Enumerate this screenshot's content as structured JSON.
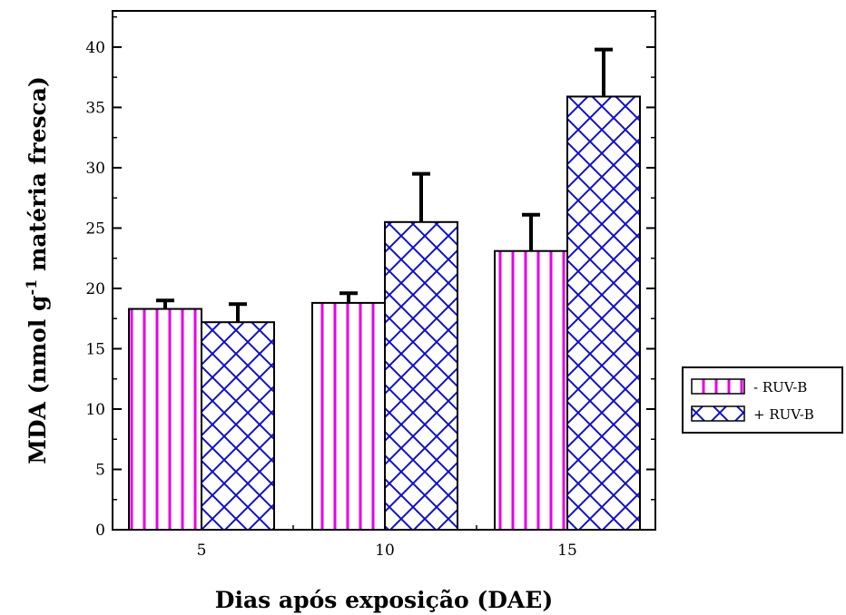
{
  "chart_data": {
    "type": "bar",
    "title": "",
    "xlabel": "Dias após exposição (DAE)",
    "ylabel_main": "MDA (nmol g",
    "ylabel_sup": "-1",
    "ylabel_rest": " matéria fresca)",
    "ylim": [
      0,
      43
    ],
    "yticks": [
      0,
      5,
      10,
      15,
      20,
      25,
      30,
      35,
      40
    ],
    "categories": [
      "5",
      "10",
      "15"
    ],
    "series": [
      {
        "name": "- RUV-B",
        "values": [
          18.3,
          18.8,
          23.1
        ],
        "errors": [
          0.7,
          0.8,
          3.0
        ],
        "pattern": "vertical-lines",
        "color": "#e600e6"
      },
      {
        "name": "+ RUV-B",
        "values": [
          17.2,
          25.5,
          35.9
        ],
        "errors": [
          1.5,
          4.0,
          3.9
        ],
        "pattern": "crosshatch",
        "color": "#1010c8"
      }
    ],
    "grid": false,
    "legend_position": "right"
  }
}
